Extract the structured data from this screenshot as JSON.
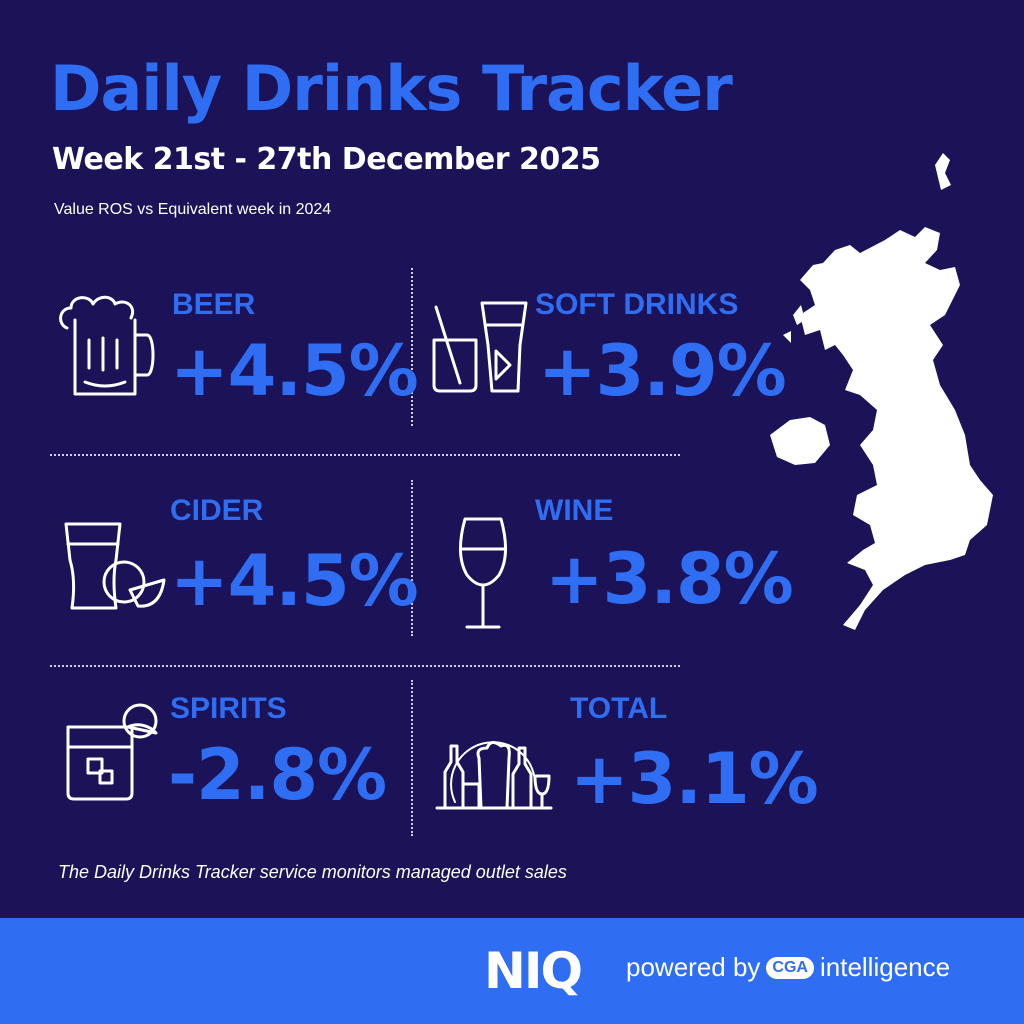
{
  "header": {
    "title": "Daily Drinks Tracker",
    "week": "Week 21st - 27th December 2025",
    "subtitle": "Value ROS vs Equivalent week in 2024"
  },
  "categories": [
    {
      "label": "BEER",
      "value": "+4.5%",
      "icon": "beer-mug-icon"
    },
    {
      "label": "SOFT DRINKS",
      "value": "+3.9%",
      "icon": "soft-drinks-glasses-icon"
    },
    {
      "label": "CIDER",
      "value": "+4.5%",
      "icon": "cider-glass-apple-icon"
    },
    {
      "label": "WINE",
      "value": "+3.8%",
      "icon": "wine-glass-icon"
    },
    {
      "label": "SPIRITS",
      "value": "-2.8%",
      "icon": "spirits-tumbler-icon"
    },
    {
      "label": "TOTAL",
      "value": "+3.1%",
      "icon": "bottles-and-glasses-icon"
    }
  ],
  "footnote": "The Daily Drinks Tracker service monitors managed outlet sales",
  "footer": {
    "logo": "NIQ",
    "powered_by": "powered by",
    "partner_logo": "CGA",
    "partner_suffix": "intelligence"
  },
  "colors": {
    "background": "#1b1257",
    "accent": "#2f6ef3",
    "text": "#ffffff"
  }
}
